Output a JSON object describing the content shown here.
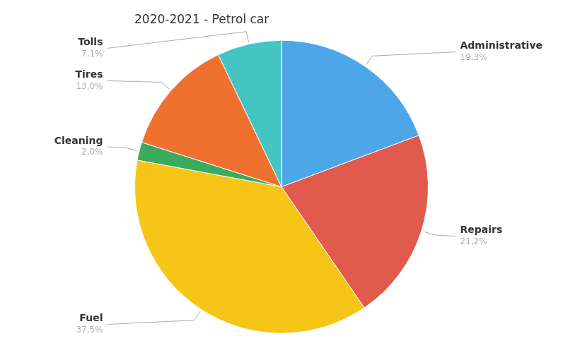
{
  "chart_data": {
    "type": "pie",
    "title": "2020-2021 - Petrol car",
    "categories": [
      "Administrative",
      "Repairs",
      "Fuel",
      "Cleaning",
      "Tires",
      "Tolls"
    ],
    "values": [
      19.3,
      21.2,
      37.5,
      2.0,
      13.0,
      7.1
    ],
    "value_labels": [
      "19,3%",
      "21,2%",
      "37,5%",
      "2,0%",
      "13,0%",
      "7,1%"
    ],
    "colors": [
      "#4da6e8",
      "#e05a4e",
      "#f5c518",
      "#3aaa5c",
      "#f07030",
      "#45c4c4"
    ],
    "data_labels": true
  }
}
